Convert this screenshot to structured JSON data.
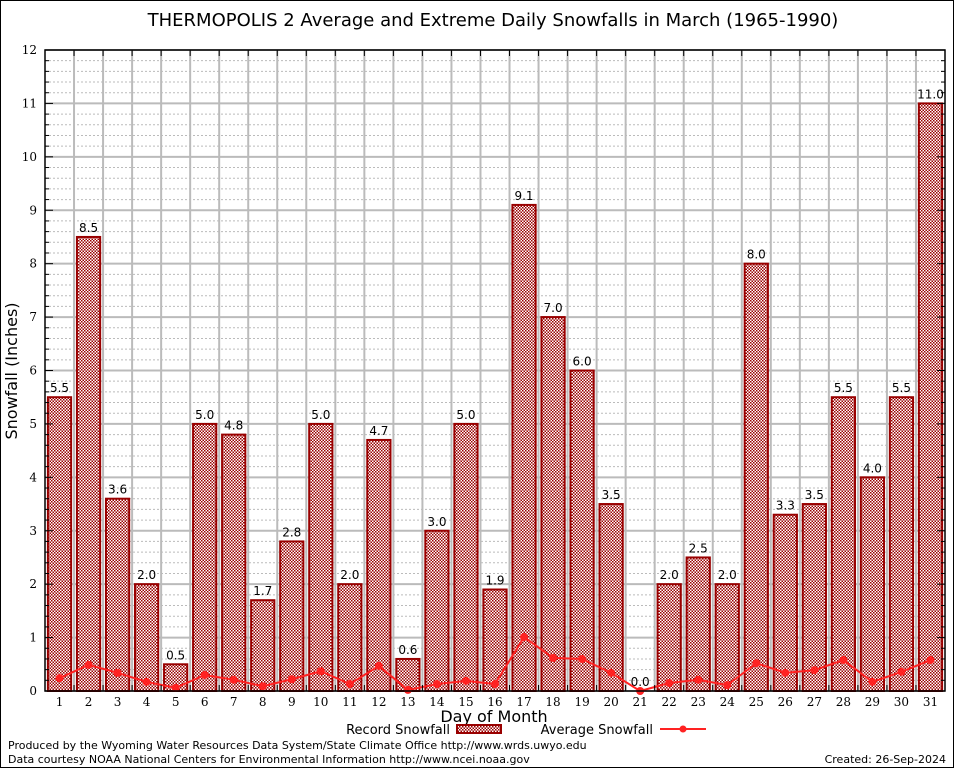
{
  "chart_data": {
    "type": "bar",
    "title": "THERMOPOLIS 2 Average and Extreme Daily Snowfalls in March (1965-1990)",
    "xlabel": "Day of Month",
    "ylabel": "Snowfall (Inches)",
    "ylim": [
      0,
      12
    ],
    "yticks": [
      "0",
      "1",
      "2",
      "3",
      "4",
      "5",
      "6",
      "7",
      "8",
      "9",
      "10",
      "11",
      "12"
    ],
    "grid": true,
    "categories": [
      "1",
      "2",
      "3",
      "4",
      "5",
      "6",
      "7",
      "8",
      "9",
      "10",
      "11",
      "12",
      "13",
      "14",
      "15",
      "16",
      "17",
      "18",
      "19",
      "20",
      "21",
      "22",
      "23",
      "24",
      "25",
      "26",
      "27",
      "28",
      "29",
      "30",
      "31"
    ],
    "series": [
      {
        "name": "Record Snowfall",
        "kind": "bar",
        "color": "#990000",
        "values": [
          5.5,
          8.5,
          3.6,
          2.0,
          0.5,
          5.0,
          4.8,
          1.7,
          2.8,
          5.0,
          2.0,
          4.7,
          0.6,
          3.0,
          5.0,
          1.9,
          9.1,
          7.0,
          6.0,
          3.5,
          0.0,
          2.0,
          2.5,
          2.0,
          8.0,
          3.3,
          3.5,
          5.5,
          4.0,
          5.5,
          11.0
        ],
        "labels": [
          "5.5",
          "8.5",
          "3.6",
          "2.0",
          "0.5",
          "5.0",
          "4.8",
          "1.7",
          "2.8",
          "5.0",
          "2.0",
          "4.7",
          "0.6",
          "3.0",
          "5.0",
          "1.9",
          "9.1",
          "7.0",
          "6.0",
          "3.5",
          "0.0",
          "2.0",
          "2.5",
          "2.0",
          "8.0",
          "3.3",
          "3.5",
          "5.5",
          "4.0",
          "5.5",
          "11.0"
        ]
      },
      {
        "name": "Average Snowfall",
        "kind": "line",
        "color": "#ff2222",
        "values": [
          0.24,
          0.49,
          0.34,
          0.17,
          0.06,
          0.3,
          0.21,
          0.09,
          0.22,
          0.37,
          0.13,
          0.47,
          0.02,
          0.13,
          0.19,
          0.13,
          1.01,
          0.62,
          0.6,
          0.34,
          0.0,
          0.15,
          0.21,
          0.11,
          0.52,
          0.34,
          0.39,
          0.58,
          0.17,
          0.36,
          0.58
        ]
      }
    ],
    "legend": {
      "placement": "bottom-center",
      "entries": [
        "Record Snowfall",
        "Average Snowfall"
      ]
    }
  },
  "footer": {
    "produced_by": "Produced by the Wyoming Water Resources Data System/State Climate Office http://www.wrds.uwyo.edu",
    "data_courtesy": "Data courtesy NOAA National Centers for Environmental Information http://www.ncei.noaa.gov",
    "created": "Created: 26-Sep-2024"
  }
}
